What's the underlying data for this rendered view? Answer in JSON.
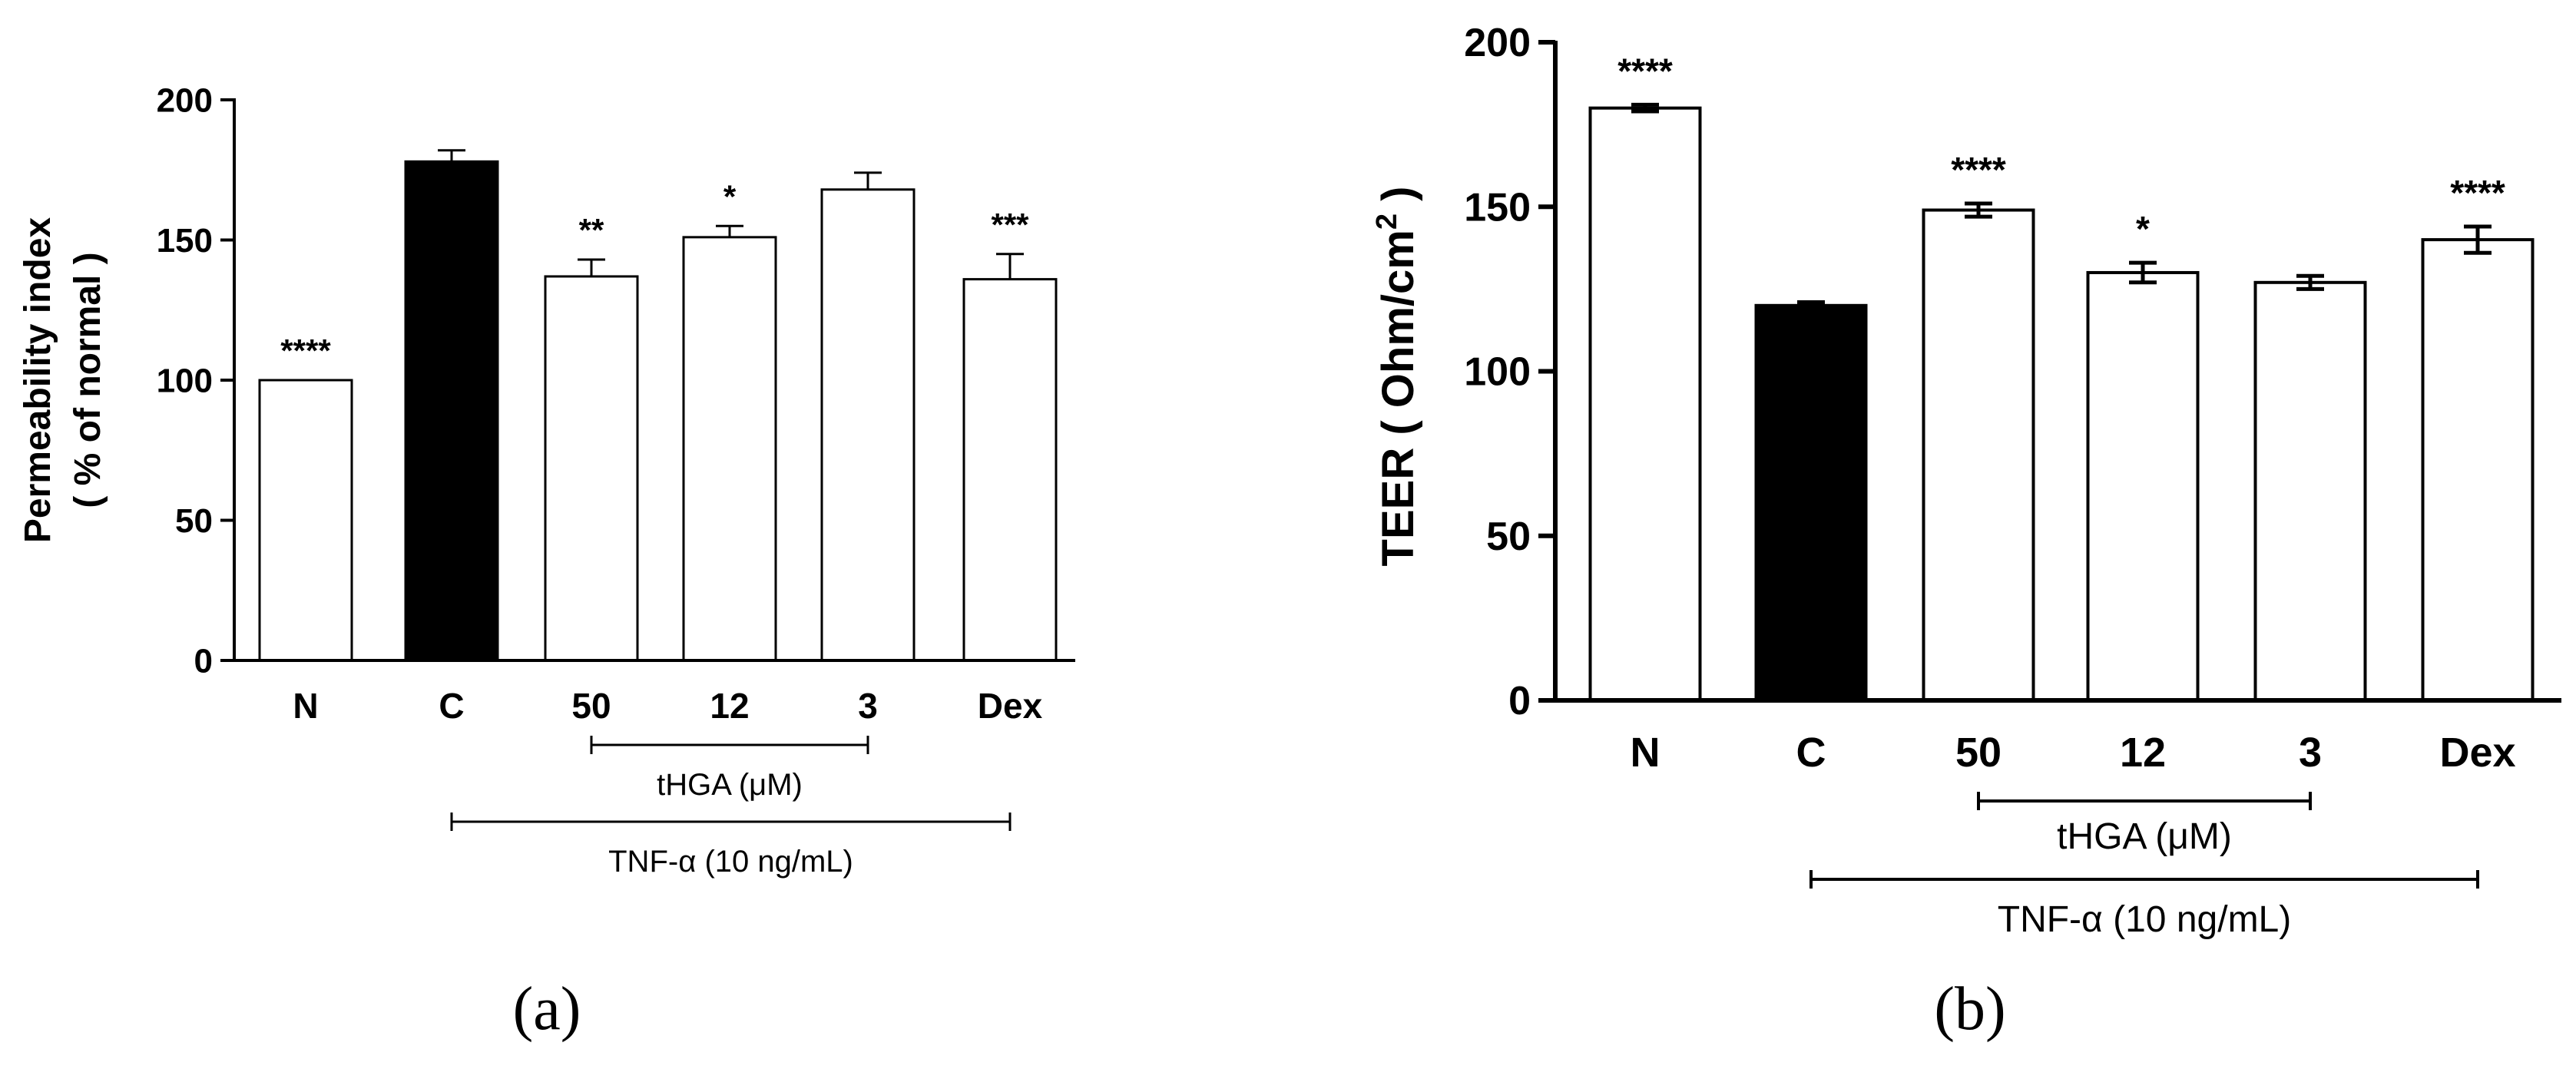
{
  "chart_data": [
    {
      "type": "bar",
      "panel_label": "(a)",
      "categories": [
        "N",
        "C",
        "50",
        "12",
        "3",
        "Dex"
      ],
      "values": [
        100,
        178,
        137,
        151,
        168,
        136
      ],
      "errors": [
        0,
        4,
        6,
        4,
        6,
        9
      ],
      "significance": [
        "****",
        "",
        "**",
        "*",
        "",
        "***"
      ],
      "bar_colors": [
        "#ffffff",
        "#000000",
        "#ffffff",
        "#ffffff",
        "#ffffff",
        "#ffffff"
      ],
      "ylabel_line1": "Permeability index",
      "ylabel_line2": "( % of normal )",
      "ylim": [
        0,
        200
      ],
      "yticks": [
        0,
        50,
        100,
        150,
        200
      ],
      "brackets": [
        {
          "label": "tHGA (μM)",
          "from": "50",
          "to": "3"
        },
        {
          "label": "TNF-α (10 ng/mL)",
          "from": "C",
          "to": "Dex"
        }
      ]
    },
    {
      "type": "bar",
      "panel_label": "(b)",
      "categories": [
        "N",
        "C",
        "50",
        "12",
        "3",
        "Dex"
      ],
      "values": [
        180,
        120,
        149,
        130,
        127,
        140
      ],
      "errors": [
        1,
        1,
        2,
        3,
        2,
        4
      ],
      "significance": [
        "****",
        "",
        "****",
        "*",
        "",
        "****"
      ],
      "bar_colors": [
        "#ffffff",
        "#000000",
        "#ffffff",
        "#ffffff",
        "#ffffff",
        "#ffffff"
      ],
      "ylabel_main": "TEER ( Ohm/cm",
      "ylabel_sup": "2",
      "ylabel_end": " )",
      "ylim": [
        0,
        200
      ],
      "yticks": [
        0,
        50,
        100,
        150,
        200
      ],
      "brackets": [
        {
          "label": "tHGA (μM)",
          "from": "50",
          "to": "3"
        },
        {
          "label": "TNF-α (10 ng/mL)",
          "from": "C",
          "to": "Dex"
        }
      ]
    }
  ]
}
